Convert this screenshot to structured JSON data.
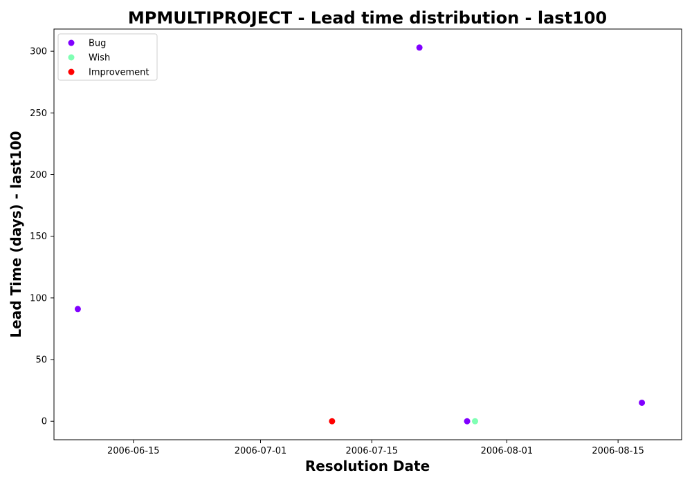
{
  "chart_data": {
    "type": "scatter",
    "title": "MPMULTIPROJECT - Lead time distribution - last100",
    "xlabel": "Resolution Date",
    "ylabel": "Lead Time (days) - last100",
    "x_ticks": [
      "2006-06-15",
      "2006-07-01",
      "2006-07-15",
      "2006-08-01",
      "2006-08-15"
    ],
    "y_ticks": [
      0,
      50,
      100,
      150,
      200,
      250,
      300
    ],
    "xlim": [
      "2006-06-05",
      "2006-08-23"
    ],
    "ylim": [
      -15,
      318
    ],
    "legend_position": "top-left",
    "series": [
      {
        "name": "Bug",
        "color": "#8000ff",
        "points": [
          {
            "x": "2006-06-08",
            "y": 91
          },
          {
            "x": "2006-07-21",
            "y": 303
          },
          {
            "x": "2006-07-27",
            "y": 0
          },
          {
            "x": "2006-08-18",
            "y": 15
          }
        ]
      },
      {
        "name": "Wish",
        "color": "#80ffb4",
        "points": [
          {
            "x": "2006-07-28",
            "y": 0
          }
        ]
      },
      {
        "name": "Improvement",
        "color": "#ff0000",
        "points": [
          {
            "x": "2006-07-10",
            "y": 0
          }
        ]
      }
    ]
  }
}
